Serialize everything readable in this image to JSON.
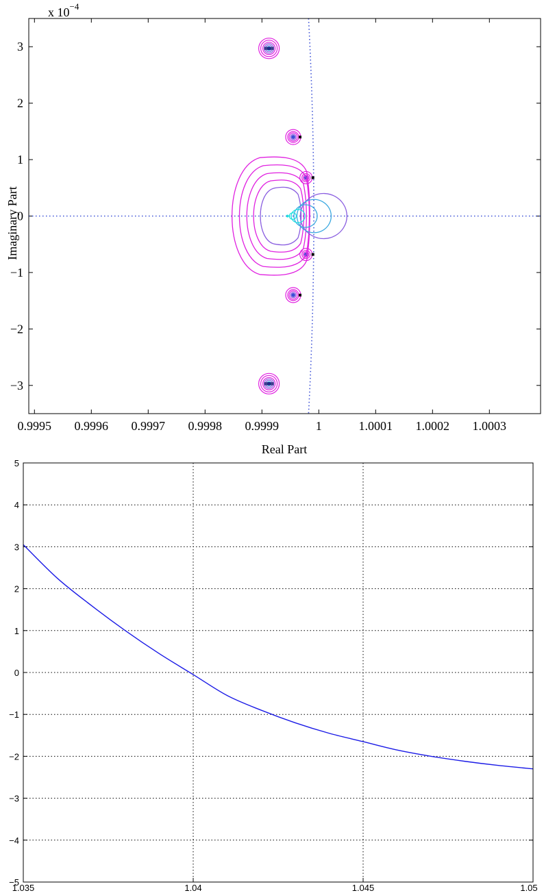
{
  "chart_data": [
    {
      "type": "scatter",
      "title": "",
      "xlabel": "Real Part",
      "ylabel": "Imaginary Part",
      "scale_label": "x 10",
      "scale_exponent": "−4",
      "xlim": [
        0.99949,
        1.00039
      ],
      "ylim": [
        -3.5,
        3.5
      ],
      "xticks": [
        0.9995,
        0.9996,
        0.9997,
        0.9998,
        0.9999,
        1,
        1.0001,
        1.0002,
        1.0003
      ],
      "xtick_labels": [
        "0.9995",
        "0.9996",
        "0.9997",
        "0.9998",
        "0.9999",
        "1",
        "1.0001",
        "1.0002",
        "1.0003"
      ],
      "yticks": [
        -3,
        -2,
        -1,
        0,
        1,
        2,
        3
      ],
      "ytick_labels": [
        "−3",
        "−2",
        "−1",
        "0",
        "1",
        "2",
        "3"
      ],
      "grid": false,
      "unit_circle_dotted": true,
      "contour_centers": [
        {
          "x": 0.99991,
          "y": 2.97
        },
        {
          "x": 0.999955,
          "y": 1.4
        },
        {
          "x": 0.99998,
          "y": 0.68
        },
        {
          "x": 0.999945,
          "y": 0.0
        },
        {
          "x": 0.99998,
          "y": -0.68
        },
        {
          "x": 0.999955,
          "y": -1.4
        },
        {
          "x": 0.99991,
          "y": -2.97
        }
      ],
      "colors": {
        "outer": "#e020e0",
        "mid": "#8a5ee0",
        "inner": "#3aa8e0",
        "core": "#20e0e0",
        "dotted": "#3a4fd6",
        "marker": "#000000"
      }
    },
    {
      "type": "line",
      "title": "",
      "xlabel": "",
      "ylabel": "",
      "xlim": [
        1.035,
        1.05
      ],
      "ylim": [
        -5,
        5
      ],
      "xticks": [
        1.035,
        1.04,
        1.045,
        1.05
      ],
      "xtick_labels": [
        "1.035",
        "1.04",
        "1.045",
        "1.05"
      ],
      "yticks": [
        -5,
        -4,
        -3,
        -2,
        -1,
        0,
        1,
        2,
        3,
        4,
        5
      ],
      "ytick_labels": [
        "−5",
        "−4",
        "−3",
        "−2",
        "−1",
        "0",
        "1",
        "2",
        "3",
        "4",
        "5"
      ],
      "grid": true,
      "series": [
        {
          "color": "#1a1ae6",
          "x": [
            1.035,
            1.036,
            1.037,
            1.038,
            1.039,
            1.04,
            1.041,
            1.042,
            1.043,
            1.044,
            1.045,
            1.046,
            1.047,
            1.048,
            1.049,
            1.05
          ],
          "y": [
            3.05,
            2.25,
            1.6,
            1.0,
            0.45,
            -0.05,
            -0.55,
            -0.9,
            -1.2,
            -1.45,
            -1.65,
            -1.85,
            -2.0,
            -2.12,
            -2.22,
            -2.3
          ]
        }
      ]
    }
  ]
}
